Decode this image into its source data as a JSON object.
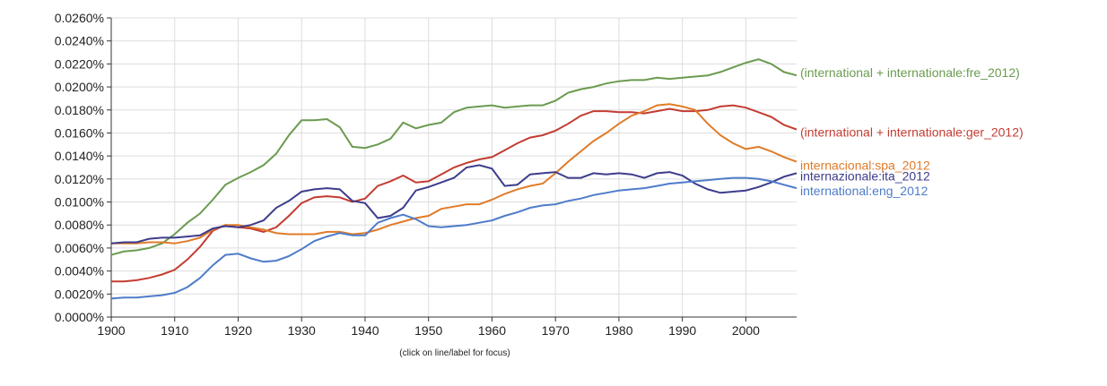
{
  "hint": "(click on line/label for focus)",
  "chart_data": {
    "type": "line",
    "x": [
      1900,
      1902,
      1904,
      1906,
      1908,
      1910,
      1912,
      1914,
      1916,
      1918,
      1920,
      1922,
      1924,
      1926,
      1928,
      1930,
      1932,
      1934,
      1936,
      1938,
      1940,
      1942,
      1944,
      1946,
      1948,
      1950,
      1952,
      1954,
      1956,
      1958,
      1960,
      1962,
      1964,
      1966,
      1968,
      1970,
      1972,
      1974,
      1976,
      1978,
      1980,
      1982,
      1984,
      1986,
      1988,
      1990,
      1992,
      1994,
      1996,
      1998,
      2000,
      2002,
      2004,
      2006,
      2008
    ],
    "xlim": [
      1900,
      2008
    ],
    "ylim": [
      0,
      0.026
    ],
    "xticks": [
      "1900",
      "1910",
      "1920",
      "1930",
      "1940",
      "1950",
      "1960",
      "1970",
      "1980",
      "1990",
      "2000"
    ],
    "yticks": [
      "0.0000%",
      "0.0020%",
      "0.0040%",
      "0.0060%",
      "0.0080%",
      "0.0100%",
      "0.0120%",
      "0.0140%",
      "0.0160%",
      "0.0180%",
      "0.0200%",
      "0.0220%",
      "0.0240%",
      "0.0260%"
    ],
    "grid": true,
    "legend": "right of series ends",
    "series": [
      {
        "name": "(international + internationale:fre_2012)",
        "color": "#6b9b50",
        "values": [
          0.0054,
          0.0057,
          0.0058,
          0.006,
          0.0064,
          0.0072,
          0.0082,
          0.009,
          0.0102,
          0.0115,
          0.0121,
          0.0126,
          0.0132,
          0.0142,
          0.0158,
          0.0171,
          0.0171,
          0.0172,
          0.0165,
          0.0148,
          0.0147,
          0.015,
          0.0155,
          0.0169,
          0.0164,
          0.0167,
          0.0169,
          0.0178,
          0.0182,
          0.0183,
          0.0184,
          0.0182,
          0.0183,
          0.0184,
          0.0184,
          0.0188,
          0.0195,
          0.0198,
          0.02,
          0.0203,
          0.0205,
          0.0206,
          0.0206,
          0.0208,
          0.0207,
          0.0208,
          0.0209,
          0.021,
          0.0213,
          0.0217,
          0.0221,
          0.0224,
          0.022,
          0.0213,
          0.021
        ]
      },
      {
        "name": "(international + internationale:ger_2012)",
        "color": "#c33c32",
        "values": [
          0.0031,
          0.0031,
          0.0032,
          0.0034,
          0.0037,
          0.0041,
          0.005,
          0.0061,
          0.0075,
          0.008,
          0.0078,
          0.0077,
          0.0074,
          0.0078,
          0.0088,
          0.0099,
          0.0104,
          0.0105,
          0.0104,
          0.01,
          0.0103,
          0.0114,
          0.0118,
          0.0123,
          0.0117,
          0.0118,
          0.0124,
          0.013,
          0.0134,
          0.0137,
          0.0139,
          0.0145,
          0.0151,
          0.0156,
          0.0158,
          0.0162,
          0.0168,
          0.0175,
          0.0179,
          0.0179,
          0.0178,
          0.0178,
          0.0177,
          0.0179,
          0.0181,
          0.0179,
          0.0179,
          0.018,
          0.0183,
          0.0184,
          0.0182,
          0.0178,
          0.0174,
          0.0167,
          0.0163
        ]
      },
      {
        "name": "internacional:spa_2012",
        "color": "#e07b29",
        "values": [
          0.0064,
          0.0064,
          0.0064,
          0.0065,
          0.0065,
          0.0064,
          0.0066,
          0.0069,
          0.0076,
          0.008,
          0.008,
          0.0078,
          0.0076,
          0.0073,
          0.0072,
          0.0072,
          0.0072,
          0.0074,
          0.0074,
          0.0072,
          0.0073,
          0.0076,
          0.008,
          0.0083,
          0.0086,
          0.0088,
          0.0094,
          0.0096,
          0.0098,
          0.0098,
          0.0102,
          0.0107,
          0.0111,
          0.0114,
          0.0116,
          0.0125,
          0.0135,
          0.0144,
          0.0153,
          0.016,
          0.0168,
          0.0175,
          0.0179,
          0.0184,
          0.0185,
          0.0183,
          0.018,
          0.0168,
          0.0158,
          0.0151,
          0.0146,
          0.0148,
          0.0144,
          0.0139,
          0.0135
        ]
      },
      {
        "name": "internazionale:ita_2012",
        "color": "#3d3d8c",
        "values": [
          0.0064,
          0.0065,
          0.0065,
          0.0068,
          0.0069,
          0.0069,
          0.007,
          0.0071,
          0.0077,
          0.0079,
          0.0078,
          0.008,
          0.0084,
          0.0095,
          0.0101,
          0.0109,
          0.0111,
          0.0112,
          0.0111,
          0.0101,
          0.0099,
          0.0086,
          0.0088,
          0.0095,
          0.011,
          0.0113,
          0.0117,
          0.0121,
          0.013,
          0.0132,
          0.0129,
          0.0114,
          0.0115,
          0.0124,
          0.0125,
          0.0126,
          0.0121,
          0.0121,
          0.0125,
          0.0124,
          0.0125,
          0.0124,
          0.0121,
          0.0125,
          0.0126,
          0.0123,
          0.0116,
          0.0111,
          0.0108,
          0.0109,
          0.011,
          0.0113,
          0.0117,
          0.0122,
          0.0125
        ]
      },
      {
        "name": "international:eng_2012",
        "color": "#4e7cc9",
        "values": [
          0.0016,
          0.0017,
          0.0017,
          0.0018,
          0.0019,
          0.0021,
          0.0026,
          0.0034,
          0.0045,
          0.0054,
          0.0055,
          0.0051,
          0.0048,
          0.0049,
          0.0053,
          0.0059,
          0.0066,
          0.007,
          0.0073,
          0.0071,
          0.0071,
          0.0082,
          0.0086,
          0.0089,
          0.0085,
          0.0079,
          0.0078,
          0.0079,
          0.008,
          0.0082,
          0.0084,
          0.0088,
          0.0091,
          0.0095,
          0.0097,
          0.0098,
          0.0101,
          0.0103,
          0.0106,
          0.0108,
          0.011,
          0.0111,
          0.0112,
          0.0114,
          0.0116,
          0.0117,
          0.0118,
          0.0119,
          0.012,
          0.0121,
          0.0121,
          0.012,
          0.0118,
          0.0115,
          0.0112
        ]
      }
    ]
  }
}
